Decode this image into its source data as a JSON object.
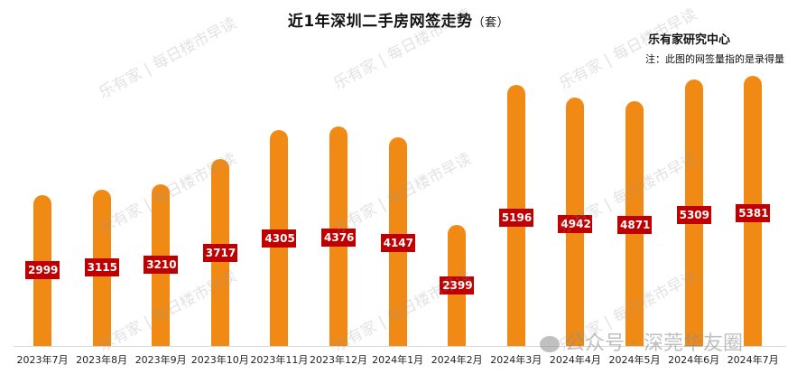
{
  "header": {
    "title": "近1年深圳二手房网签走势",
    "unit": "（套）",
    "source": "乐有家研究中心",
    "note": "注：此图的网签量指的是录得量"
  },
  "colors": {
    "bar": "#F08A15",
    "label_bg": "#C00000",
    "axis": "#D9D9D9"
  },
  "watermarks": {
    "brand": "乐有家",
    "text": "每日楼市早读",
    "wechat": "公众号 · 深莞华友圈"
  },
  "chart_data": {
    "type": "bar",
    "title": "近1年深圳二手房网签走势（套）",
    "xlabel": "",
    "ylabel": "套",
    "categories": [
      "2023年7月",
      "2023年8月",
      "2023年9月",
      "2023年10月",
      "2023年11月",
      "2023年12月",
      "2024年1月",
      "2024年2月",
      "2024年3月",
      "2024年4月",
      "2024年5月",
      "2024年6月",
      "2024年7月"
    ],
    "values": [
      2999,
      3115,
      3210,
      3717,
      4305,
      4376,
      4147,
      2399,
      5196,
      4942,
      4871,
      5309,
      5381
    ],
    "grid": false,
    "legend": "none",
    "annotations": [
      "乐有家研究中心",
      "注：此图的网签量指的是录得量"
    ]
  }
}
